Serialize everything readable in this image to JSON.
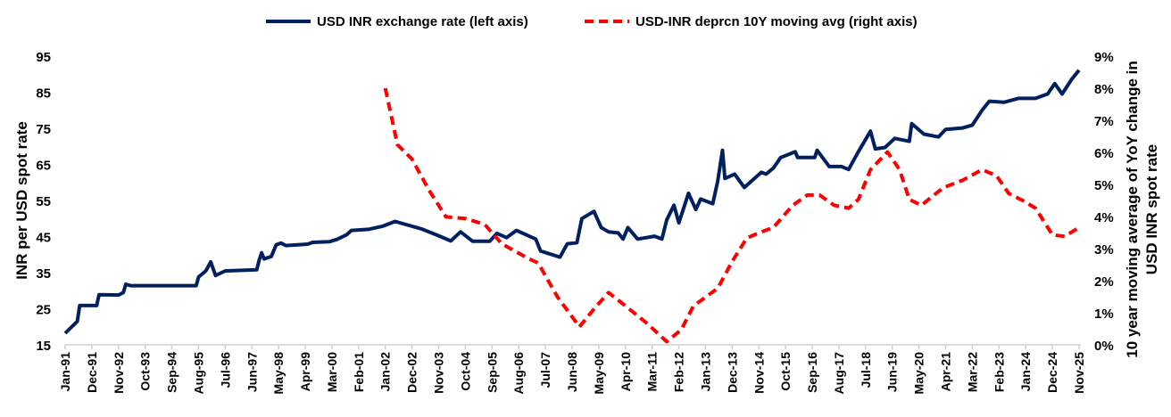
{
  "chart_data": {
    "type": "line",
    "title": "",
    "legend_position": "top",
    "grid": false,
    "xlabel": "",
    "ylabel": "INR per USD spot rate",
    "y2label_lines": [
      "10 year moving average of YoY change in",
      "USD INR spot rate"
    ],
    "ylim": [
      15,
      95
    ],
    "yticks": [
      "15",
      "25",
      "35",
      "45",
      "55",
      "65",
      "75",
      "85",
      "95"
    ],
    "y2lim": [
      0,
      9
    ],
    "y2ticks": [
      "0%",
      "1%",
      "2%",
      "3%",
      "4%",
      "5%",
      "6%",
      "7%",
      "8%",
      "9%"
    ],
    "xlim": [
      "1991-01",
      "2025-11"
    ],
    "xticks": [
      "Jan-91",
      "Dec-91",
      "Nov-92",
      "Oct-93",
      "Sep-94",
      "Aug-95",
      "Jul-96",
      "Jun-97",
      "May-98",
      "Apr-99",
      "Mar-00",
      "Feb-01",
      "Jan-02",
      "Dec-02",
      "Nov-03",
      "Oct-04",
      "Sep-05",
      "Aug-06",
      "Jul-07",
      "Jun-08",
      "May-09",
      "Apr-10",
      "Mar-11",
      "Feb-12",
      "Jan-13",
      "Dec-13",
      "Nov-14",
      "Oct-15",
      "Sep-16",
      "Aug-17",
      "Jul-18",
      "Jun-19",
      "May-20",
      "Apr-21",
      "Mar-22",
      "Feb-23",
      "Jan-24",
      "Dec-24",
      "Nov-25"
    ],
    "series": [
      {
        "name": "USD INR exchange rate (left axis)",
        "axis": "left",
        "color": "#002060",
        "style": "solid",
        "points": [
          [
            "1991-01",
            18.2
          ],
          [
            "1991-06",
            21.5
          ],
          [
            "1991-07",
            25.9
          ],
          [
            "1992-02",
            25.9
          ],
          [
            "1992-03",
            28.9
          ],
          [
            "1992-11",
            28.8
          ],
          [
            "1993-01",
            29.5
          ],
          [
            "1993-02",
            31.8
          ],
          [
            "1993-04",
            31.4
          ],
          [
            "1995-07",
            31.4
          ],
          [
            "1995-08",
            33.8
          ],
          [
            "1995-11",
            35.5
          ],
          [
            "1996-01",
            38.0
          ],
          [
            "1996-03",
            34.2
          ],
          [
            "1996-07",
            35.5
          ],
          [
            "1997-08",
            35.8
          ],
          [
            "1997-09",
            38.5
          ],
          [
            "1997-10",
            40.5
          ],
          [
            "1997-11",
            38.8
          ],
          [
            "1998-02",
            39.5
          ],
          [
            "1998-04",
            42.7
          ],
          [
            "1998-06",
            43.2
          ],
          [
            "1998-08",
            42.5
          ],
          [
            "1999-05",
            42.9
          ],
          [
            "1999-07",
            43.4
          ],
          [
            "2000-02",
            43.6
          ],
          [
            "2000-05",
            44.2
          ],
          [
            "2000-09",
            45.5
          ],
          [
            "2000-11",
            46.7
          ],
          [
            "2001-06",
            47.0
          ],
          [
            "2001-12",
            47.9
          ],
          [
            "2002-05",
            49.2
          ],
          [
            "2003-04",
            47.1
          ],
          [
            "2003-10",
            45.5
          ],
          [
            "2004-04",
            43.8
          ],
          [
            "2004-08",
            46.3
          ],
          [
            "2005-01",
            43.7
          ],
          [
            "2005-08",
            43.7
          ],
          [
            "2005-11",
            45.9
          ],
          [
            "2006-03",
            44.7
          ],
          [
            "2006-07",
            46.7
          ],
          [
            "2007-03",
            44.3
          ],
          [
            "2007-05",
            41.0
          ],
          [
            "2008-01",
            39.3
          ],
          [
            "2008-04",
            43.0
          ],
          [
            "2008-08",
            43.3
          ],
          [
            "2008-10",
            50.0
          ],
          [
            "2009-03",
            52.0
          ],
          [
            "2009-06",
            47.5
          ],
          [
            "2009-09",
            46.3
          ],
          [
            "2010-01",
            46.0
          ],
          [
            "2010-03",
            44.3
          ],
          [
            "2010-05",
            47.5
          ],
          [
            "2010-09",
            44.3
          ],
          [
            "2011-04",
            45.1
          ],
          [
            "2011-07",
            44.3
          ],
          [
            "2011-09",
            49.6
          ],
          [
            "2011-12",
            53.7
          ],
          [
            "2012-02",
            48.8
          ],
          [
            "2012-06",
            57.0
          ],
          [
            "2012-09",
            52.5
          ],
          [
            "2012-11",
            55.4
          ],
          [
            "2013-04",
            54.1
          ],
          [
            "2013-06",
            60.3
          ],
          [
            "2013-08",
            68.9
          ],
          [
            "2013-09",
            61.1
          ],
          [
            "2014-01",
            62.3
          ],
          [
            "2014-05",
            58.6
          ],
          [
            "2014-12",
            62.8
          ],
          [
            "2015-02",
            62.3
          ],
          [
            "2015-05",
            64.0
          ],
          [
            "2015-08",
            66.9
          ],
          [
            "2016-02",
            68.5
          ],
          [
            "2016-03",
            66.9
          ],
          [
            "2016-10",
            66.9
          ],
          [
            "2016-11",
            68.9
          ],
          [
            "2017-04",
            64.4
          ],
          [
            "2017-09",
            64.4
          ],
          [
            "2017-12",
            63.6
          ],
          [
            "2018-04",
            68.5
          ],
          [
            "2018-09",
            74.2
          ],
          [
            "2018-11",
            69.3
          ],
          [
            "2019-03",
            69.7
          ],
          [
            "2019-07",
            72.2
          ],
          [
            "2020-01",
            71.4
          ],
          [
            "2020-02",
            76.3
          ],
          [
            "2020-07",
            73.4
          ],
          [
            "2021-01",
            72.6
          ],
          [
            "2021-04",
            74.7
          ],
          [
            "2021-11",
            75.1
          ],
          [
            "2022-03",
            75.9
          ],
          [
            "2022-07",
            80.0
          ],
          [
            "2022-10",
            82.5
          ],
          [
            "2023-04",
            82.2
          ],
          [
            "2023-10",
            83.3
          ],
          [
            "2024-05",
            83.3
          ],
          [
            "2024-10",
            84.5
          ],
          [
            "2025-01",
            87.4
          ],
          [
            "2025-04",
            84.5
          ],
          [
            "2025-08",
            88.6
          ],
          [
            "2025-11",
            91.1
          ]
        ]
      },
      {
        "name": "USD-INR deprcn 10Y moving avg (right axis)",
        "axis": "right",
        "color": "#FF0000",
        "style": "dashed",
        "points": [
          [
            "2002-01",
            8.0
          ],
          [
            "2002-06",
            6.24
          ],
          [
            "2002-12",
            5.79
          ],
          [
            "2003-07",
            4.82
          ],
          [
            "2004-02",
            3.99
          ],
          [
            "2004-10",
            3.94
          ],
          [
            "2005-06",
            3.75
          ],
          [
            "2006-01",
            3.15
          ],
          [
            "2006-12",
            2.69
          ],
          [
            "2007-04",
            2.55
          ],
          [
            "2007-12",
            1.49
          ],
          [
            "2008-09",
            0.56
          ],
          [
            "2009-03",
            1.12
          ],
          [
            "2009-09",
            1.63
          ],
          [
            "2010-04",
            1.21
          ],
          [
            "2011-01",
            0.66
          ],
          [
            "2011-09",
            0.1
          ],
          [
            "2012-03",
            0.47
          ],
          [
            "2012-08",
            1.21
          ],
          [
            "2013-06",
            1.76
          ],
          [
            "2013-12",
            2.6
          ],
          [
            "2014-06",
            3.33
          ],
          [
            "2014-12",
            3.52
          ],
          [
            "2015-05",
            3.66
          ],
          [
            "2016-01",
            4.35
          ],
          [
            "2016-07",
            4.67
          ],
          [
            "2016-12",
            4.67
          ],
          [
            "2017-06",
            4.35
          ],
          [
            "2017-12",
            4.26
          ],
          [
            "2018-04",
            4.53
          ],
          [
            "2018-09",
            5.46
          ],
          [
            "2019-04",
            6.01
          ],
          [
            "2019-09",
            5.46
          ],
          [
            "2020-01",
            4.53
          ],
          [
            "2020-06",
            4.35
          ],
          [
            "2021-03",
            4.9
          ],
          [
            "2021-11",
            5.13
          ],
          [
            "2022-07",
            5.46
          ],
          [
            "2023-01",
            5.27
          ],
          [
            "2023-06",
            4.72
          ],
          [
            "2023-12",
            4.49
          ],
          [
            "2024-05",
            4.26
          ],
          [
            "2024-12",
            3.43
          ],
          [
            "2025-05",
            3.38
          ],
          [
            "2025-10",
            3.61
          ]
        ]
      }
    ]
  }
}
